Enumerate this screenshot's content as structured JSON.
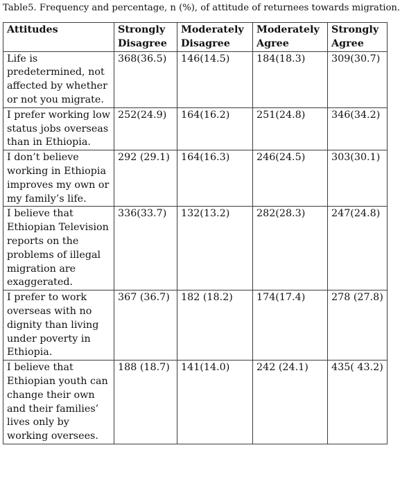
{
  "caption": "Table5. Frequency and percentage, n (%), of attitude of returnees towards migration.",
  "headers": [
    {
      "line1": "Attitudes",
      "line2": ""
    },
    {
      "line1": "Strongly",
      "line2": "Disagree"
    },
    {
      "line1": "Moderately",
      "line2": "Disagree"
    },
    {
      "line1": "Moderately",
      "line2": "Agree"
    },
    {
      "line1": "Strongly",
      "line2": "Agree"
    }
  ],
  "rows": [
    {
      "attitude": "Life is predetermined, not affected by whether or not you migrate.",
      "strongly_disagree": "368(36.5)",
      "moderately_disagree": "146(14.5)",
      "moderately_agree": "184(18.3)",
      "strongly_agree": "309(30.7)"
    },
    {
      "attitude": "I prefer working low status jobs overseas than in Ethiopia.",
      "strongly_disagree": "252(24.9)",
      "moderately_disagree": "164(16.2)",
      "moderately_agree": "251(24.8)",
      "strongly_agree": "346(34.2)"
    },
    {
      "attitude": "I don’t believe working in Ethiopia improves my own or my family’s life.",
      "strongly_disagree": "292 (29.1)",
      "moderately_disagree": "164(16.3)",
      "moderately_agree": "246(24.5)",
      "strongly_agree": "303(30.1)"
    },
    {
      "attitude": "I believe that Ethiopian Television reports on the problems of illegal migration are exaggerated.",
      "strongly_disagree": "336(33.7)",
      "moderately_disagree": "132(13.2)",
      "moderately_agree": "282(28.3)",
      "strongly_agree": "247(24.8)"
    },
    {
      "attitude": "I prefer to work overseas with no dignity than living under poverty in Ethiopia.",
      "strongly_disagree": "367 (36.7)",
      "moderately_disagree": "182 (18.2)",
      "moderately_agree": "174(17.4)",
      "strongly_agree": "278 (27.8)"
    },
    {
      "attitude": "I believe that Ethiopian youth can change their own and their families’ lives only by working oversees.",
      "strongly_disagree": "188 (18.7)",
      "moderately_disagree": "141(14.0)",
      "moderately_agree": "242 (24.1)",
      "strongly_agree": "435( 43.2)"
    }
  ]
}
